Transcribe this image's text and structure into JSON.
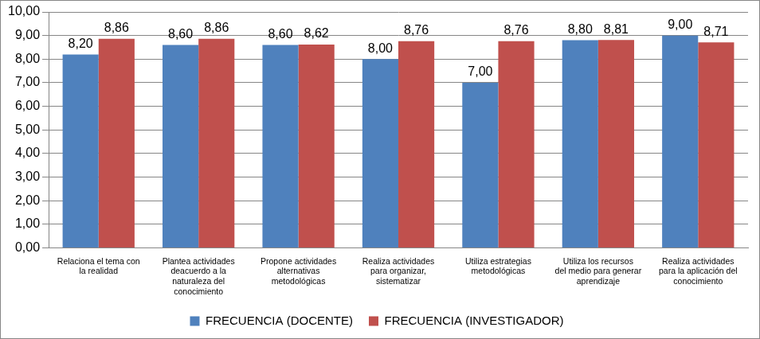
{
  "chart_data": {
    "type": "bar",
    "categories": [
      "Relaciona el tema con la realidad",
      "Plantea actividades deacuerdo a la naturaleza del conocimiento",
      "Propone actividades alternativas metodológicas",
      "Realiza actividades para organizar, sistematizar",
      "Utiliza estrategias metodológicas",
      "Utiliza los recursos del medio para generar aprendizaje",
      "Realiza actividades para la aplicación del conocimiento"
    ],
    "series": [
      {
        "name": "FRECUENCIA (DOCENTE)",
        "color": "#4f81bd",
        "values": [
          8.2,
          8.6,
          8.6,
          8.0,
          7.0,
          8.8,
          9.0
        ],
        "value_labels": [
          "8,20",
          "8,60",
          "8,60",
          "8,00",
          "7,00",
          "8,80",
          "9,00"
        ]
      },
      {
        "name": "FRECUENCIA (INVESTIGADOR)",
        "color": "#c0504d",
        "values": [
          8.86,
          8.86,
          8.62,
          8.76,
          8.76,
          8.81,
          8.71
        ],
        "value_labels": [
          "8,86",
          "8,86",
          "8,62",
          "8,76",
          "8,76",
          "8,81",
          "8,71"
        ]
      }
    ],
    "ylim": [
      0,
      10
    ],
    "yticks": [
      {
        "value": 0,
        "label": "0,00"
      },
      {
        "value": 1,
        "label": "1,00"
      },
      {
        "value": 2,
        "label": "2,00"
      },
      {
        "value": 3,
        "label": "3,00"
      },
      {
        "value": 4,
        "label": "4,00"
      },
      {
        "value": 5,
        "label": "5,00"
      },
      {
        "value": 6,
        "label": "6,00"
      },
      {
        "value": 7,
        "label": "7,00"
      },
      {
        "value": 8,
        "label": "8,00"
      },
      {
        "value": 9,
        "label": "9,00"
      },
      {
        "value": 10,
        "label": "10,00"
      }
    ],
    "grid": true,
    "legend": "bottom",
    "data_labels": true
  }
}
